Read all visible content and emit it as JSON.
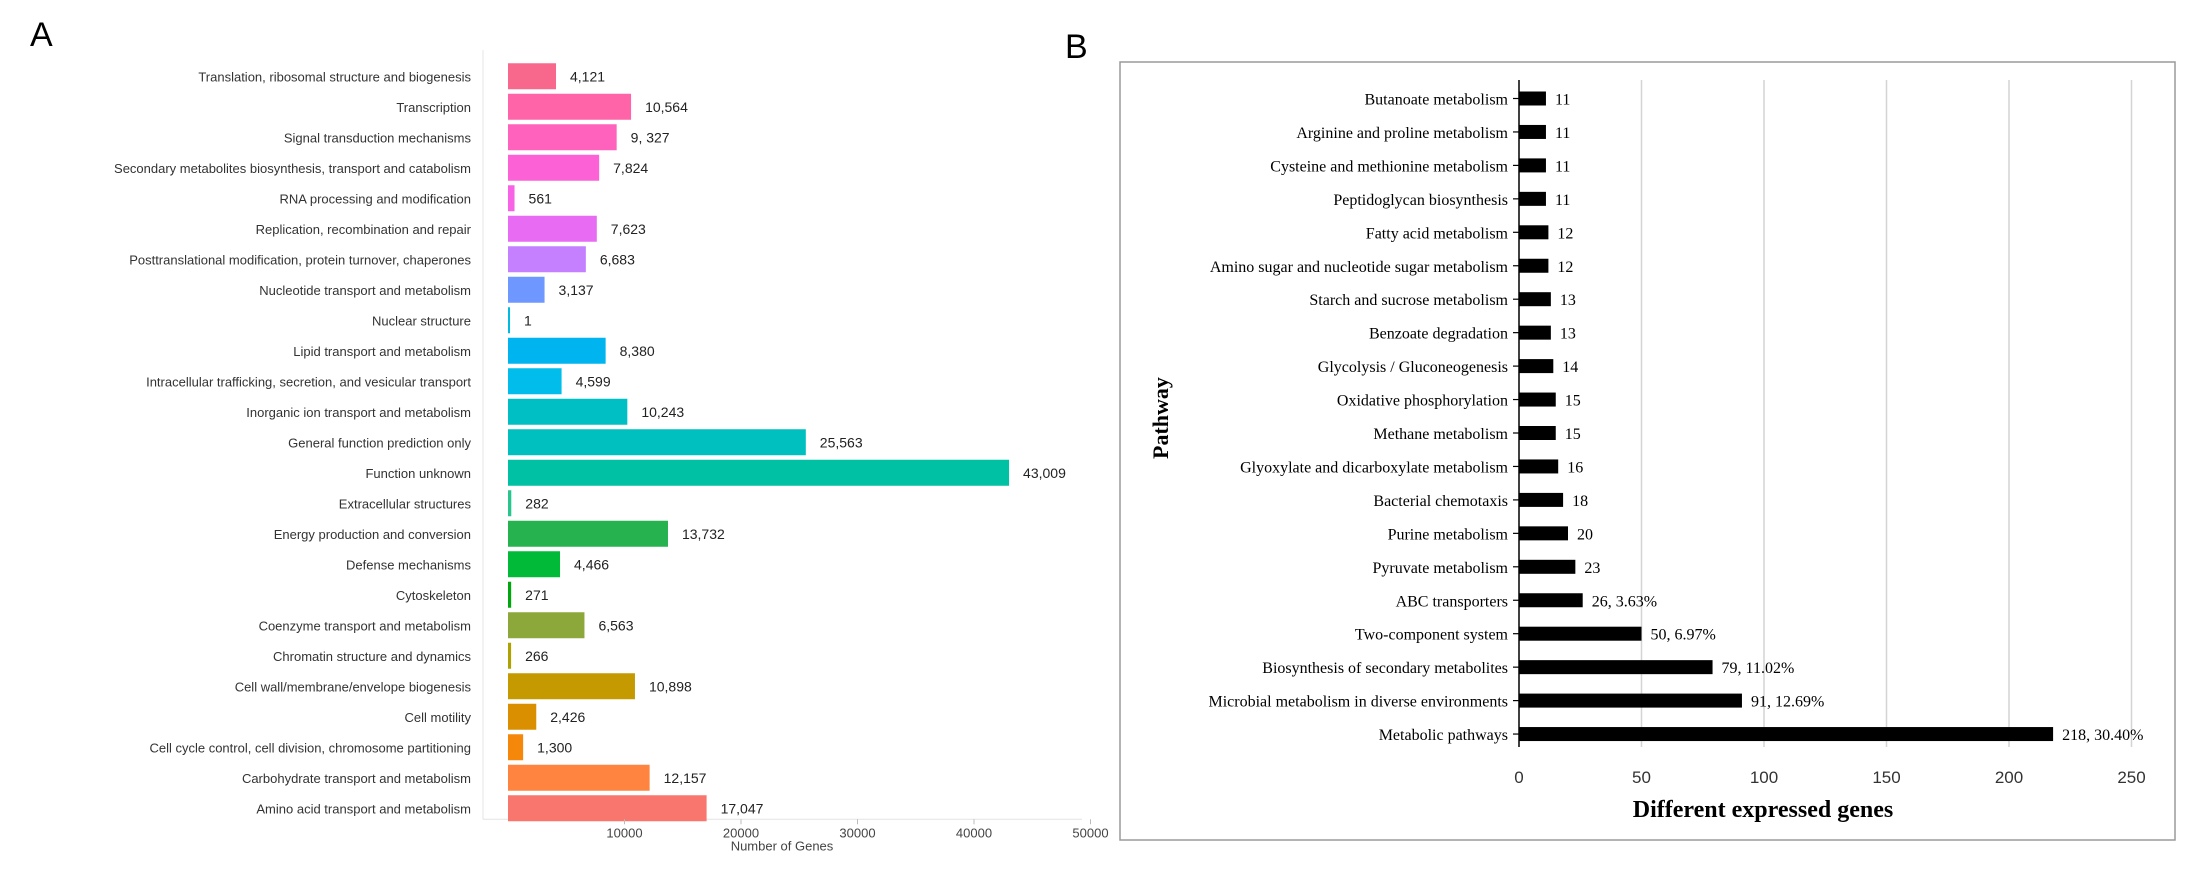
{
  "panel_a": {
    "letter": "A",
    "chart_data": {
      "type": "bar",
      "orientation": "horizontal",
      "xlabel": "Number of Genes",
      "tick_labels": [
        "10000",
        "20000",
        "30000",
        "40000",
        "50000"
      ],
      "categories": [
        "Translation, ribosomal structure and biogenesis",
        "Transcription",
        "Signal transduction mechanisms",
        "Secondary metabolites biosynthesis, transport and catabolism",
        "RNA processing and modification",
        "Replication, recombination and repair",
        "Posttranslational modification, protein turnover, chaperones",
        "Nucleotide transport and metabolism",
        "Nuclear structure",
        "Lipid transport and metabolism",
        "Intracellular trafficking, secretion, and vesicular transport",
        "Inorganic ion transport and metabolism",
        "General function prediction only",
        "Function unknown",
        "Extracellular structures",
        "Energy production and conversion",
        "Defense mechanisms",
        "Cytoskeleton",
        "Coenzyme transport and metabolism",
        "Chromatin structure and dynamics",
        "Cell wall/membrane/envelope biogenesis",
        "Cell motility",
        "Cell cycle control, cell division, chromosome partitioning",
        "Carbohydrate transport and metabolism",
        "Amino acid transport and metabolism"
      ],
      "values": [
        4121,
        10564,
        9327,
        7824,
        561,
        7623,
        6683,
        3137,
        1,
        8380,
        4599,
        10243,
        25563,
        43009,
        282,
        13732,
        4466,
        271,
        6563,
        266,
        10898,
        2426,
        1300,
        12157,
        17047
      ],
      "value_labels": [
        "4,121",
        "10,564",
        "9, 327",
        "7,824",
        "561",
        "7,623",
        "6,683",
        "3,137",
        "1",
        "8,380",
        "4,599",
        "10,243",
        "25,563",
        "43,009",
        "282",
        "13,732",
        "4,466",
        "271",
        "6,563",
        "266",
        "10,898",
        "2,426",
        "1,300",
        "12,157",
        "17,047"
      ],
      "colors": [
        "#f7688c",
        "#ff63a8",
        "#ff62bc",
        "#fc61d5",
        "#f863e6",
        "#e76bf3",
        "#c480ff",
        "#6e98ff",
        "#00bae0",
        "#00b5ef",
        "#00bdeb",
        "#00bfc4",
        "#00bfbf",
        "#00c1a3",
        "#28c58d",
        "#26b24e",
        "#00ba38",
        "#00a60e",
        "#8ca83b",
        "#aea200",
        "#c49a00",
        "#da8f00",
        "#f5870a",
        "#ff8440",
        "#f8766d"
      ]
    }
  },
  "panel_b": {
    "letter": "B",
    "chart_data": {
      "type": "bar",
      "orientation": "horizontal",
      "xlabel": "Different expressed genes",
      "ylabel": "Pathway",
      "xlim": [
        0,
        250
      ],
      "xticks": [
        0,
        50,
        100,
        150,
        200,
        250
      ],
      "grid": true,
      "bar_color": "#000000",
      "categories": [
        "Butanoate metabolism",
        "Arginine and proline metabolism",
        "Cysteine and methionine metabolism",
        "Peptidoglycan biosynthesis",
        "Fatty acid metabolism",
        "Amino sugar and nucleotide sugar metabolism",
        "Starch and sucrose metabolism",
        "Benzoate degradation",
        "Glycolysis / Gluconeogenesis",
        "Oxidative phosphorylation",
        "Methane metabolism",
        "Glyoxylate and dicarboxylate metabolism",
        "Bacterial chemotaxis",
        "Purine metabolism",
        "Pyruvate metabolism",
        "ABC transporters",
        "Two-component system",
        "Biosynthesis of secondary metabolites",
        "Microbial metabolism in diverse environments",
        "Metabolic pathways"
      ],
      "values": [
        11,
        11,
        11,
        11,
        12,
        12,
        13,
        13,
        14,
        15,
        15,
        16,
        18,
        20,
        23,
        26,
        50,
        79,
        91,
        218
      ],
      "value_labels": [
        "11",
        "11",
        "11",
        "11",
        "12",
        "12",
        "13",
        "13",
        "14",
        "15",
        "15",
        "16",
        "18",
        "20",
        "23",
        "26, 3.63%",
        "50, 6.97%",
        "79, 11.02%",
        "91, 12.69%",
        "218, 30.40%"
      ]
    }
  }
}
